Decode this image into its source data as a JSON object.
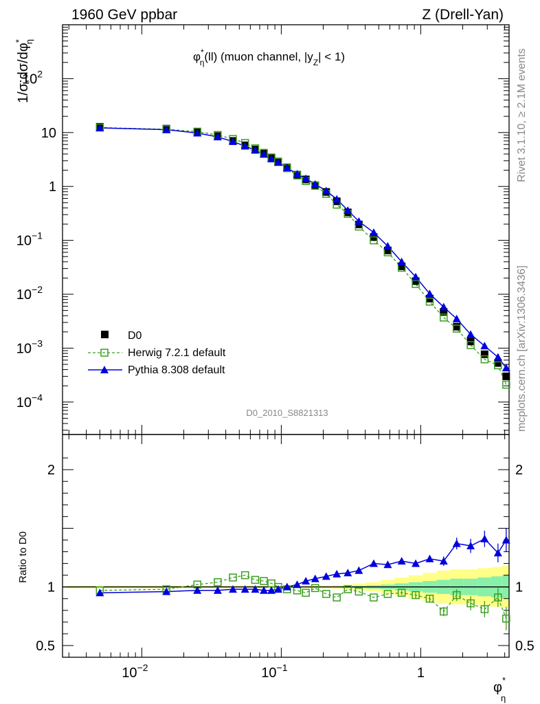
{
  "header": {
    "left": "1960 GeV ppbar",
    "right": "Z (Drell-Yan)"
  },
  "side": {
    "top": "Rivet 3.1.10, ≥ 2.1M events",
    "bottom": "mcplots.cern.ch [arXiv:1306.3436]"
  },
  "colors": {
    "data": "#000000",
    "herwig": "#3a9e1f",
    "pythia": "#0000dd",
    "band_outer": "#ffff88",
    "band_inner": "#88f0a8"
  },
  "chart_data": {
    "type": "scatter",
    "title": "φ*η(ll) (muon channel, |yZ| < 1)",
    "analysis_tag": "D0_2010_S8821313",
    "x_scale": "log",
    "y_scale": "log",
    "xlabel": "φ*η",
    "ylabel": "1/σ;dσ/dφ*η",
    "ratio_ylabel": "Ratio to D0",
    "xlim": [
      0.0027,
      4.3
    ],
    "ylim": [
      2.5e-05,
      1000
    ],
    "ratio_ylim": [
      0.4,
      2.3
    ],
    "x_ticks": [
      "10^-2",
      "10^-1",
      "1"
    ],
    "y_ticks": [
      "10^-4",
      "10^-3",
      "10^-2",
      "10^-1",
      "1",
      "10",
      "10^2"
    ],
    "ratio_ticks": [
      "0.5",
      "1",
      "2"
    ],
    "legend_position": "bottom-left",
    "legend": {
      "data": "D0",
      "herwig": "Herwig 7.2.1 default",
      "pythia": "Pythia 8.308 default"
    },
    "x": [
      0.005,
      0.015,
      0.025,
      0.035,
      0.045,
      0.055,
      0.065,
      0.075,
      0.085,
      0.095,
      0.11,
      0.13,
      0.15,
      0.175,
      0.21,
      0.25,
      0.3,
      0.36,
      0.46,
      0.58,
      0.73,
      0.92,
      1.16,
      1.46,
      1.81,
      2.28,
      2.87,
      3.58,
      4.1
    ],
    "series": [
      {
        "name": "D0",
        "values": [
          12.8,
          11.8,
          10.3,
          8.6,
          7.0,
          5.8,
          4.85,
          4.05,
          3.4,
          2.9,
          2.25,
          1.65,
          1.35,
          1.05,
          0.79,
          0.53,
          0.33,
          0.197,
          0.115,
          0.065,
          0.033,
          0.0175,
          0.0083,
          0.0047,
          0.0025,
          0.00133,
          0.00077,
          0.00053,
          0.0003
        ]
      },
      {
        "name": "Herwig 7.2.1 default",
        "values": [
          12.4,
          11.5,
          10.4,
          9.0,
          7.6,
          6.4,
          5.1,
          4.2,
          3.45,
          2.85,
          2.18,
          1.6,
          1.26,
          1.03,
          0.73,
          0.46,
          0.31,
          0.18,
          0.1,
          0.06,
          0.031,
          0.0155,
          0.0073,
          0.0037,
          0.0023,
          0.00114,
          0.00062,
          0.00048,
          0.00021
        ]
      },
      {
        "name": "Pythia 8.308 default",
        "values": [
          12.2,
          11.3,
          9.8,
          8.3,
          6.8,
          5.6,
          4.7,
          3.95,
          3.25,
          2.8,
          2.22,
          1.7,
          1.4,
          1.1,
          0.83,
          0.58,
          0.36,
          0.225,
          0.14,
          0.078,
          0.04,
          0.021,
          0.0102,
          0.0058,
          0.0035,
          0.0018,
          0.0011,
          0.00068,
          0.00043
        ]
      }
    ],
    "ratio": {
      "herwig": [
        0.97,
        0.98,
        1.02,
        1.04,
        1.08,
        1.1,
        1.06,
        1.05,
        1.03,
        1.0,
        0.98,
        0.97,
        0.95,
        0.99,
        0.94,
        0.91,
        0.98,
        0.96,
        0.91,
        0.94,
        0.95,
        0.93,
        0.9,
        0.79,
        0.93,
        0.86,
        0.81,
        0.91,
        0.73
      ],
      "herwig_err": [
        0.01,
        0.01,
        0.01,
        0.01,
        0.01,
        0.01,
        0.01,
        0.01,
        0.01,
        0.01,
        0.01,
        0.01,
        0.01,
        0.01,
        0.01,
        0.01,
        0.01,
        0.01,
        0.01,
        0.015,
        0.02,
        0.025,
        0.03,
        0.04,
        0.05,
        0.06,
        0.07,
        0.08,
        0.1
      ],
      "pythia": [
        0.95,
        0.96,
        0.97,
        0.97,
        0.98,
        0.98,
        0.98,
        0.97,
        0.97,
        0.98,
        1.0,
        1.02,
        1.05,
        1.07,
        1.09,
        1.11,
        1.12,
        1.14,
        1.2,
        1.19,
        1.22,
        1.2,
        1.24,
        1.22,
        1.37,
        1.35,
        1.41,
        1.29,
        1.4
      ],
      "pythia_err": [
        0.01,
        0.01,
        0.01,
        0.01,
        0.01,
        0.01,
        0.01,
        0.01,
        0.01,
        0.01,
        0.01,
        0.01,
        0.01,
        0.01,
        0.01,
        0.01,
        0.01,
        0.01,
        0.015,
        0.015,
        0.02,
        0.02,
        0.03,
        0.04,
        0.05,
        0.06,
        0.07,
        0.08,
        0.1
      ],
      "band_inner": [
        0.005,
        0.005,
        0.005,
        0.005,
        0.005,
        0.005,
        0.005,
        0.005,
        0.005,
        0.005,
        0.005,
        0.005,
        0.005,
        0.005,
        0.005,
        0.005,
        0.01,
        0.01,
        0.015,
        0.02,
        0.03,
        0.04,
        0.05,
        0.06,
        0.07,
        0.07,
        0.08,
        0.09,
        0.1
      ],
      "band_outer": [
        0.01,
        0.01,
        0.01,
        0.01,
        0.01,
        0.01,
        0.01,
        0.01,
        0.01,
        0.01,
        0.01,
        0.01,
        0.01,
        0.01,
        0.01,
        0.015,
        0.02,
        0.03,
        0.04,
        0.06,
        0.08,
        0.1,
        0.12,
        0.14,
        0.15,
        0.15,
        0.16,
        0.17,
        0.18
      ]
    }
  }
}
